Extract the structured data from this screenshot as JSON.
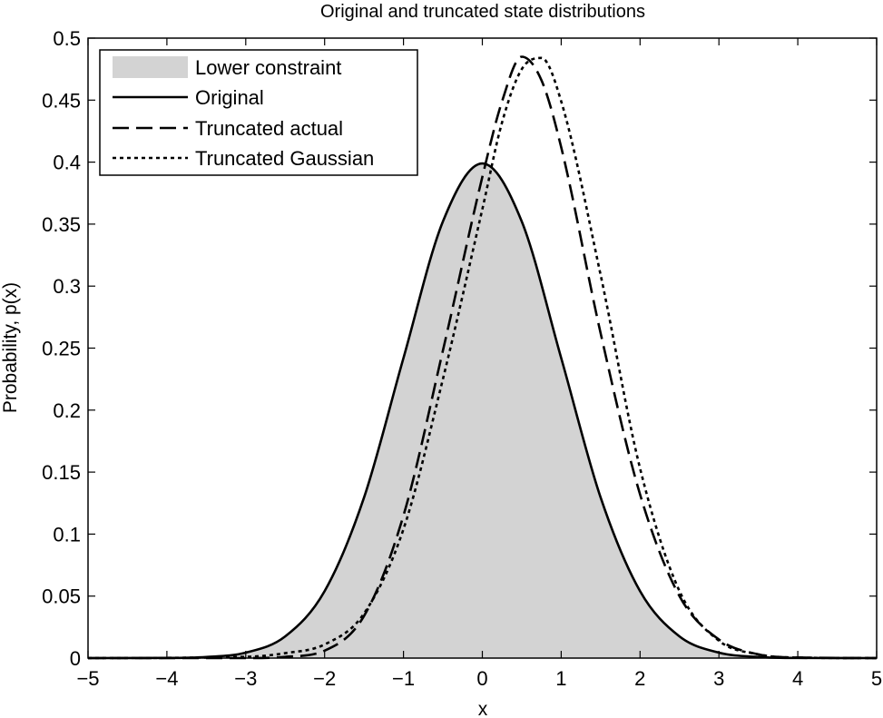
{
  "chart_data": {
    "type": "line",
    "title": "Original and truncated state distributions",
    "xlabel": "x",
    "ylabel": "Probability, p(x)",
    "xlim": [
      -5,
      5
    ],
    "ylim": [
      0,
      0.5
    ],
    "xticks": [
      -5,
      -4,
      -3,
      -2,
      -1,
      0,
      1,
      2,
      3,
      4,
      5
    ],
    "xtick_labels": [
      "−5",
      "−4",
      "−3",
      "−2",
      "−1",
      "0",
      "1",
      "2",
      "3",
      "4",
      "5"
    ],
    "yticks": [
      0,
      0.05,
      0.1,
      0.15,
      0.2,
      0.25,
      0.3,
      0.35,
      0.4,
      0.45,
      0.5
    ],
    "ytick_labels": [
      "0",
      "0.05",
      "0.1",
      "0.15",
      "0.2",
      "0.25",
      "0.3",
      "0.35",
      "0.4",
      "0.45",
      "0.5"
    ],
    "grid": false,
    "legend_position": "top-left",
    "legend": [
      "Lower constraint",
      "Original",
      "Truncated actual",
      "Truncated Gaussian"
    ],
    "series": [
      {
        "name": "Lower constraint",
        "style": "area",
        "color": "#d3d3d3",
        "x": [
          -5,
          -4,
          -3.5,
          -3,
          -2.5,
          -2,
          -1.5,
          -1,
          -0.5,
          0,
          0.5,
          1,
          1.5,
          2,
          2.5,
          3,
          3.5,
          4,
          5
        ],
        "y": [
          0,
          0.0001,
          0.0009,
          0.0044,
          0.0175,
          0.054,
          0.1295,
          0.242,
          0.3521,
          0.3989,
          0.3521,
          0.242,
          0.1295,
          0.054,
          0.0175,
          0.0044,
          0.0009,
          0.0001,
          0
        ]
      },
      {
        "name": "Original",
        "style": "solid",
        "color": "#000000",
        "x": [
          -5,
          -4,
          -3.5,
          -3,
          -2.5,
          -2,
          -1.5,
          -1,
          -0.5,
          0,
          0.5,
          1,
          1.5,
          2,
          2.5,
          3,
          3.5,
          4,
          5
        ],
        "y": [
          0,
          0.0001,
          0.0009,
          0.0044,
          0.0175,
          0.054,
          0.1295,
          0.242,
          0.3521,
          0.3989,
          0.3521,
          0.242,
          0.1295,
          0.054,
          0.0175,
          0.0044,
          0.0009,
          0.0001,
          0
        ]
      },
      {
        "name": "Truncated actual",
        "style": "dashed",
        "color": "#000000",
        "x": [
          -5,
          -3,
          -2.5,
          -2,
          -1.5,
          -1,
          -0.5,
          0,
          0.25,
          0.5,
          0.75,
          1,
          1.5,
          2,
          2.5,
          3,
          3.5,
          4,
          5
        ],
        "y": [
          0,
          0,
          0.001,
          0.006,
          0.034,
          0.115,
          0.248,
          0.388,
          0.449,
          0.485,
          0.466,
          0.412,
          0.262,
          0.132,
          0.05,
          0.015,
          0.003,
          0.0005,
          0
        ]
      },
      {
        "name": "Truncated Gaussian",
        "style": "dotted",
        "color": "#000000",
        "x": [
          -5,
          -3,
          -2.5,
          -2,
          -1.5,
          -1,
          -0.5,
          0,
          0.25,
          0.5,
          0.75,
          1,
          1.5,
          2,
          2.5,
          3,
          3.5,
          4,
          5
        ],
        "y": [
          0,
          0.001,
          0.004,
          0.011,
          0.036,
          0.104,
          0.225,
          0.362,
          0.432,
          0.475,
          0.484,
          0.449,
          0.309,
          0.153,
          0.054,
          0.014,
          0.003,
          0.0004,
          0
        ]
      }
    ]
  }
}
